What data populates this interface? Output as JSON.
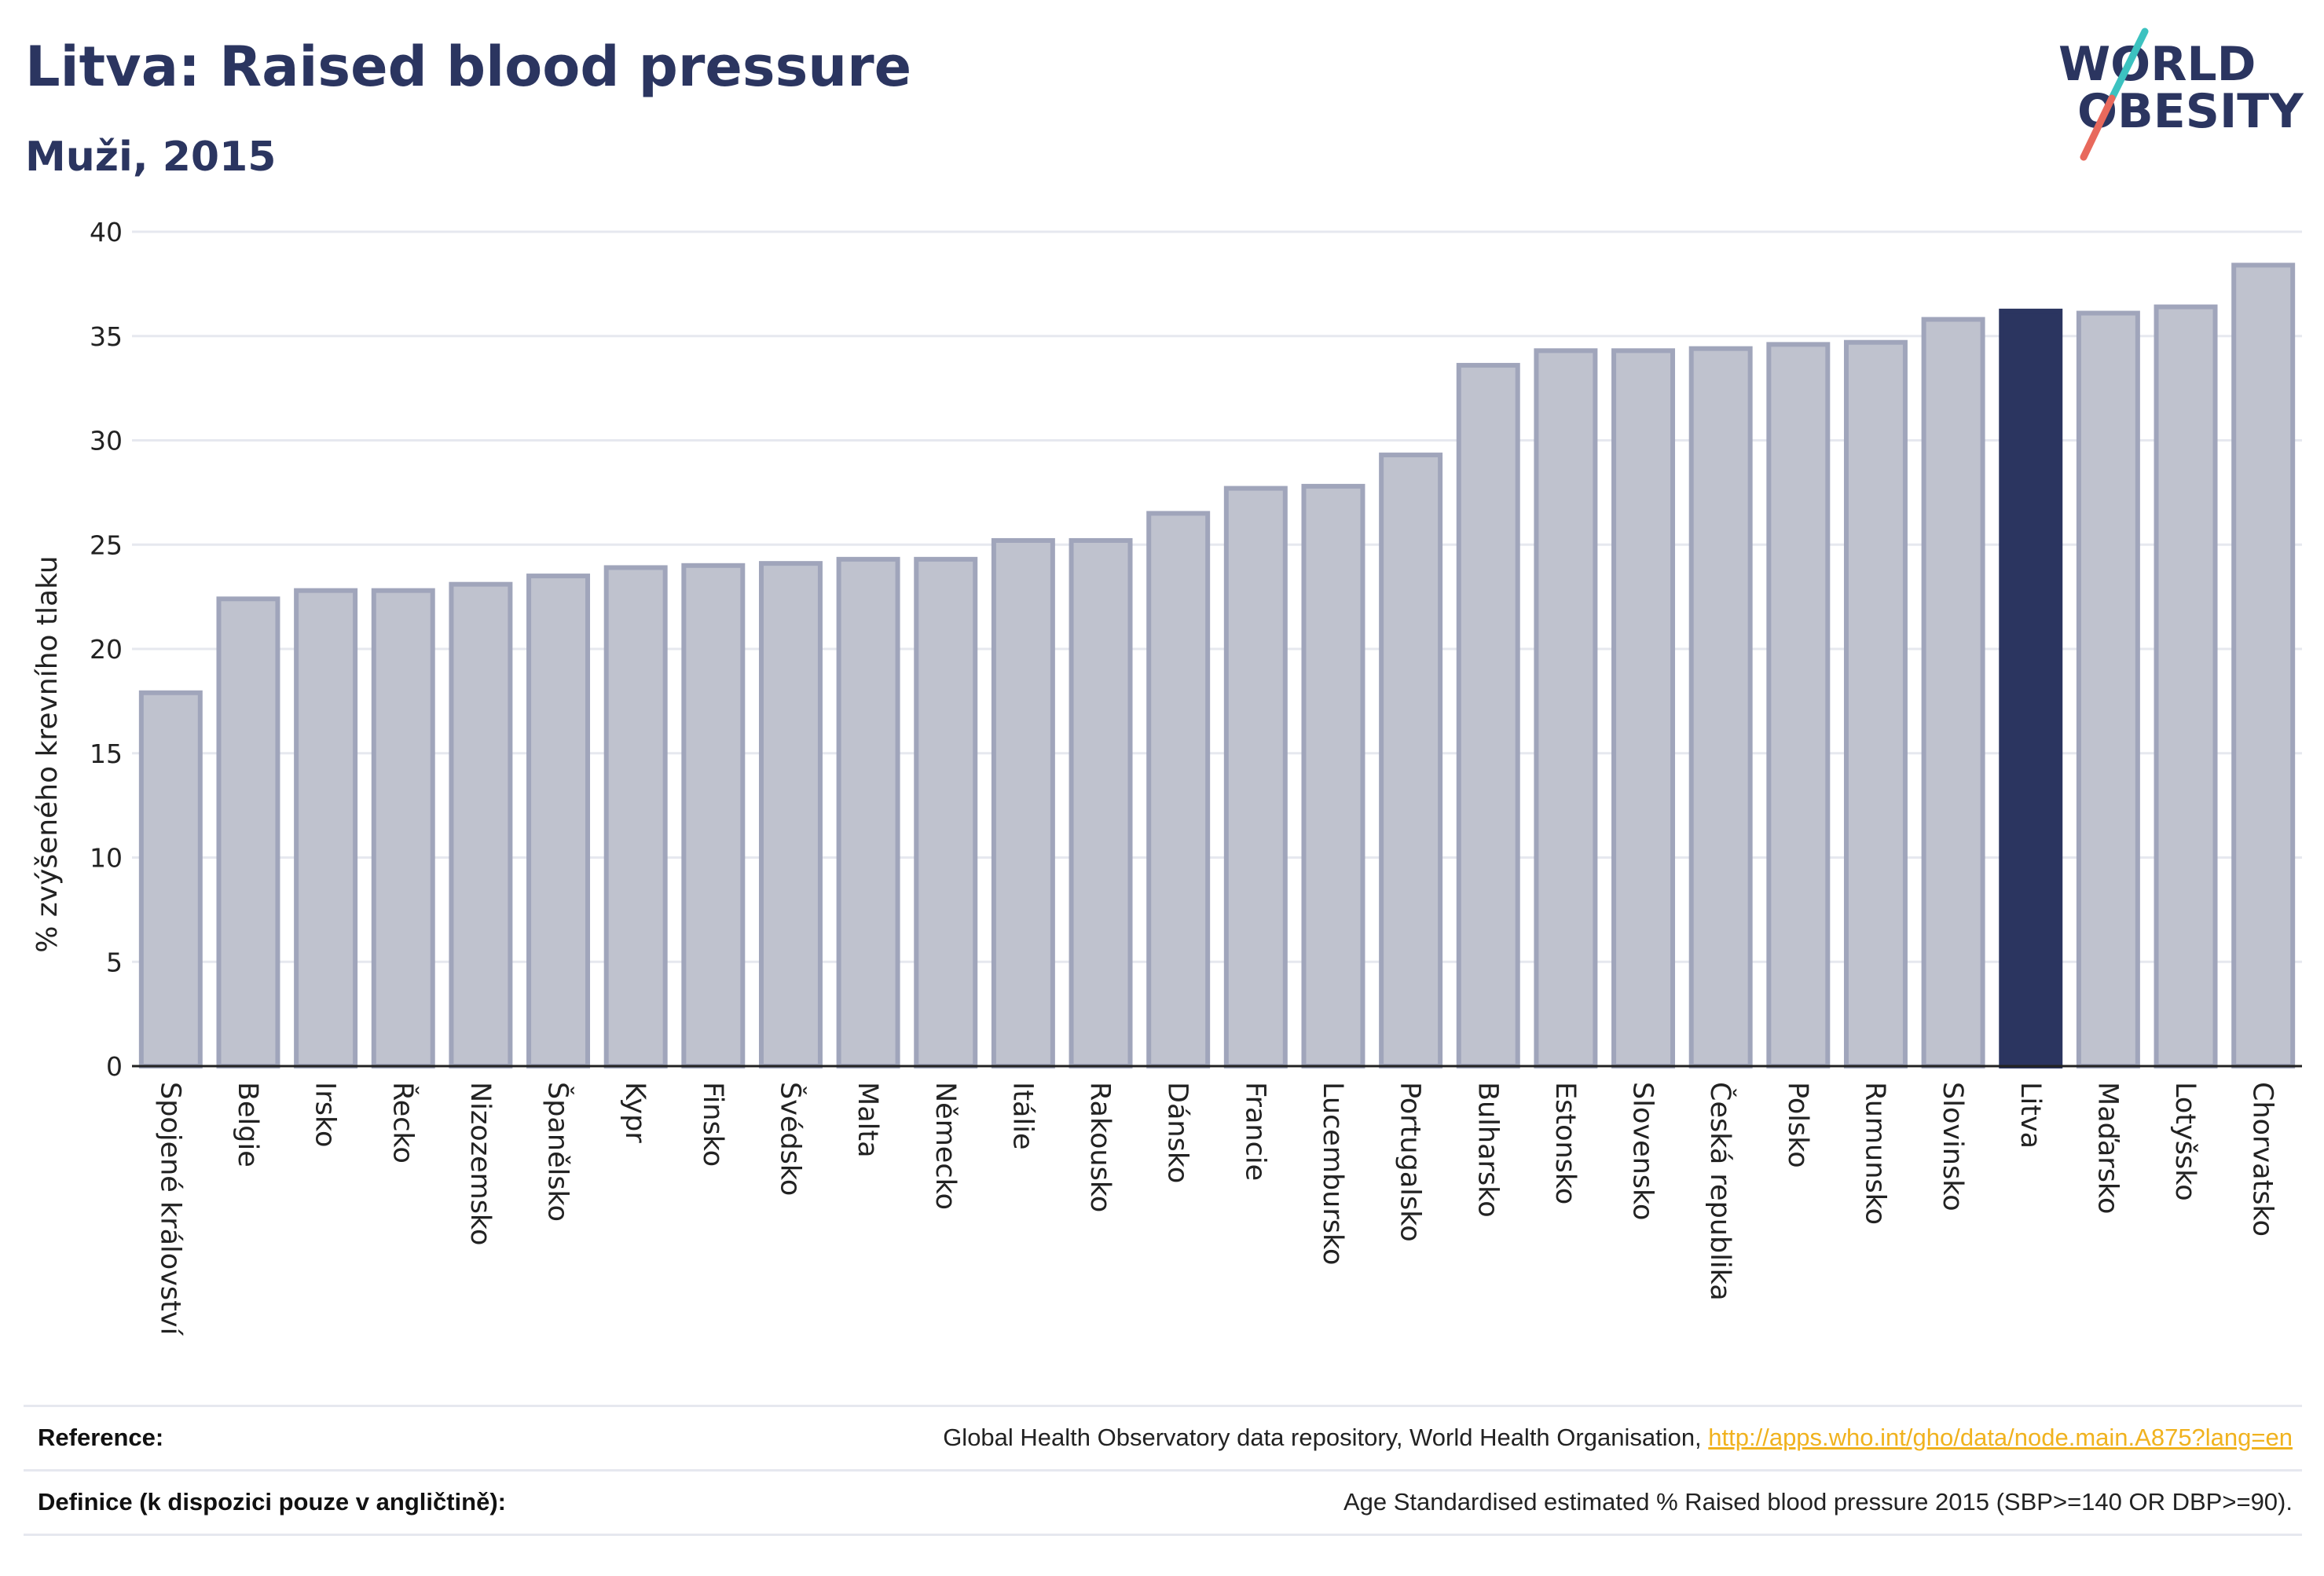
{
  "header": {
    "title": "Litva: Raised blood pressure",
    "subtitle": "Muži, 2015"
  },
  "logo": {
    "line1": "WORLD",
    "line2": "OBESITY",
    "text_color": "#2b3560",
    "slash_color_top": "#3cc2c0",
    "slash_color_bottom": "#e8695c"
  },
  "colors": {
    "bar_fill": "#bfc2ce",
    "bar_stroke": "#a0a5bb",
    "highlight_fill": "#2b3560",
    "grid": "#e6e8ef",
    "axis": "#222222"
  },
  "chart_data": {
    "type": "bar",
    "title": "Litva: Raised blood pressure",
    "subtitle": "Muži, 2015",
    "xlabel": "",
    "ylabel": "% zvýšeného krevního tlaku",
    "ylim": [
      0,
      40
    ],
    "yticks": [
      0,
      5,
      10,
      15,
      20,
      25,
      30,
      35,
      40
    ],
    "grid": true,
    "highlight": "Litva",
    "categories": [
      "Spojené království",
      "Belgie",
      "Irsko",
      "Řecko",
      "Nizozemsko",
      "Španělsko",
      "Kypr",
      "Finsko",
      "Švédsko",
      "Malta",
      "Německo",
      "Itálie",
      "Rakousko",
      "Dánsko",
      "Francie",
      "Lucembursko",
      "Portugalsko",
      "Bulharsko",
      "Estonsko",
      "Slovensko",
      "Česká republika",
      "Polsko",
      "Rumunsko",
      "Slovinsko",
      "Litva",
      "Maďarsko",
      "Lotyšsko",
      "Chorvatsko"
    ],
    "values": [
      17.9,
      22.4,
      22.8,
      22.8,
      23.1,
      23.5,
      23.9,
      24.0,
      24.1,
      24.3,
      24.3,
      25.2,
      25.2,
      26.5,
      27.7,
      27.8,
      29.3,
      33.6,
      34.3,
      34.3,
      34.4,
      34.6,
      34.7,
      35.8,
      36.2,
      36.1,
      36.4,
      38.4
    ]
  },
  "footer": {
    "reference_label": "Reference:",
    "reference_text": "Global Health Observatory data repository, World Health Organisation, ",
    "reference_link": "http://apps.who.int/gho/data/node.main.A875?lang=en",
    "definition_label": "Definice (k dispozici pouze v angličtině):",
    "definition_text": "Age Standardised estimated % Raised blood pressure 2015 (SBP>=140 OR DBP>=90)."
  }
}
